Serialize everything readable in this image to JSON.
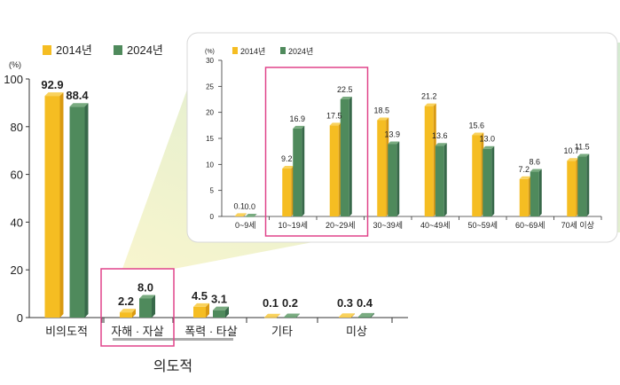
{
  "colors": {
    "y2014_front": "#f5bd22",
    "y2014_top": "#f9d25c",
    "y2014_side": "#d99a12",
    "y2024_front": "#4f8a5c",
    "y2024_top": "#79ab80",
    "y2024_side": "#38694a",
    "highlight": "#e0448a",
    "wedge": "#cfe8cc"
  },
  "chart_data": [
    {
      "type": "bar",
      "unit": "(%)",
      "ylim": [
        0,
        100
      ],
      "yticks": [
        0,
        20,
        40,
        60,
        80,
        100
      ],
      "legend": {
        "placement": "top-left",
        "entries": [
          "2014년",
          "2024년"
        ]
      },
      "categories": [
        "비의도적",
        "자해 · 자살",
        "폭력 · 타살",
        "기타",
        "미상"
      ],
      "series": [
        {
          "name": "2014년",
          "values": [
            92.9,
            2.2,
            4.5,
            0.1,
            0.3
          ]
        },
        {
          "name": "2024년",
          "values": [
            88.4,
            8.0,
            3.1,
            0.2,
            0.4
          ]
        }
      ],
      "group_label": "의도적",
      "highlighted_category": "자해 · 자살"
    },
    {
      "type": "bar",
      "unit": "(%)",
      "ylim": [
        0,
        30
      ],
      "yticks": [
        0,
        5,
        10,
        15,
        20,
        25,
        30
      ],
      "legend": {
        "placement": "top-left",
        "entries": [
          "2014년",
          "2024년"
        ]
      },
      "categories": [
        "0~9세",
        "10~19세",
        "20~29세",
        "30~39세",
        "40~49세",
        "50~59세",
        "60~69세",
        "70세 이상"
      ],
      "series": [
        {
          "name": "2014년",
          "values": [
            0.1,
            9.2,
            17.5,
            18.5,
            21.2,
            15.6,
            7.2,
            10.7
          ]
        },
        {
          "name": "2024년",
          "values": [
            0.0,
            16.9,
            22.5,
            13.9,
            13.6,
            13.0,
            8.6,
            11.5
          ]
        }
      ],
      "highlighted_categories": [
        "10~19세",
        "20~29세"
      ]
    }
  ]
}
